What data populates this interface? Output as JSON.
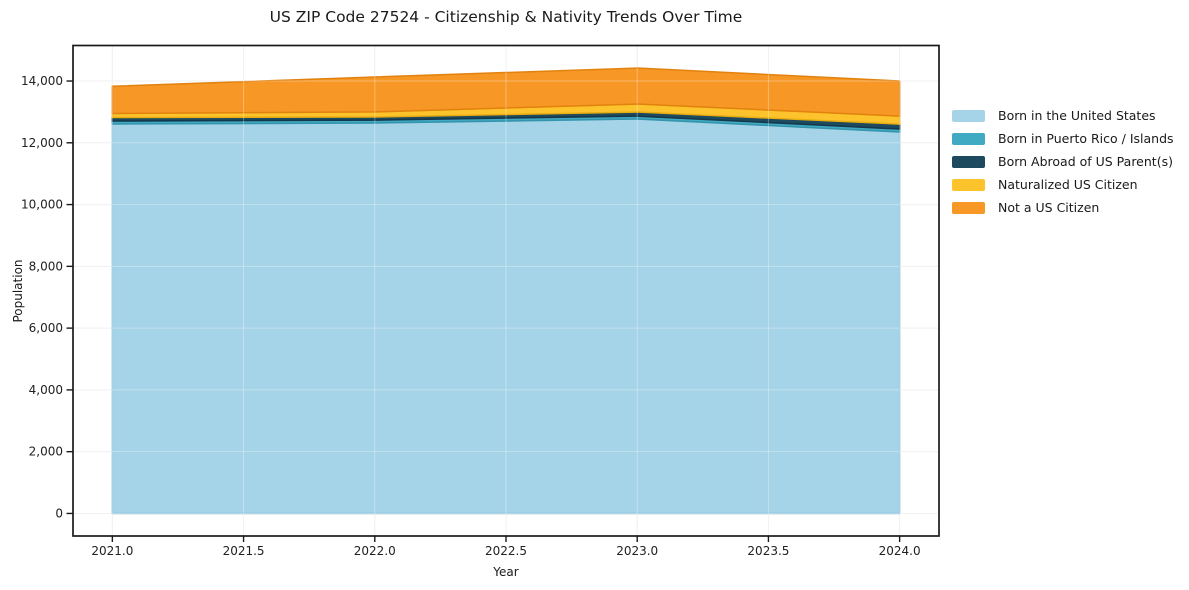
{
  "title": "US ZIP Code 27524 - Citizenship & Nativity Trends Over Time",
  "chart_data": {
    "type": "area",
    "stacked": true,
    "title": "US ZIP Code 27524 - Citizenship & Nativity Trends Over Time",
    "xlabel": "Year",
    "ylabel": "Population",
    "x": [
      2021,
      2022,
      2023,
      2024
    ],
    "series": [
      {
        "name": "Born in the United States",
        "color": "#a5d3e7",
        "edge": "#8ac2da",
        "values": [
          12610,
          12640,
          12770,
          12350
        ]
      },
      {
        "name": "Born in Puerto Rico / Islands",
        "color": "#41aac3",
        "edge": "#3494ac",
        "values": [
          95,
          95,
          95,
          95
        ]
      },
      {
        "name": "Born Abroad of US Parent(s)",
        "color": "#1d4a5f",
        "edge": "#14374a",
        "values": [
          115,
          100,
          130,
          160
        ]
      },
      {
        "name": "Naturalized US Citizen",
        "color": "#fcc32d",
        "edge": "#e9ad12",
        "values": [
          130,
          165,
          260,
          260
        ]
      },
      {
        "name": "Not a US Citizen",
        "color": "#f79726",
        "edge": "#e2820e",
        "values": [
          880,
          1130,
          1165,
          1135
        ]
      }
    ],
    "totals": [
      13830,
      14130,
      14420,
      14000
    ],
    "xticks": {
      "values": [
        2021.0,
        2021.5,
        2022.0,
        2022.5,
        2023.0,
        2023.5,
        2024.0
      ],
      "labels": [
        "2021.0",
        "2021.5",
        "2022.0",
        "2022.5",
        "2023.0",
        "2023.5",
        "2024.0"
      ]
    },
    "yticks": {
      "values": [
        0,
        2000,
        4000,
        6000,
        8000,
        10000,
        12000,
        14000
      ],
      "labels": [
        "0",
        "2,000",
        "4,000",
        "6,000",
        "8,000",
        "10,000",
        "12,000",
        "14,000"
      ]
    },
    "xlim": [
      2020.85,
      2024.15
    ],
    "ylim": [
      -730,
      15150
    ],
    "grid": true,
    "grid_color": "#ebebeb",
    "frame_color": "#1a1a1a",
    "legend_position": "right-outside"
  }
}
